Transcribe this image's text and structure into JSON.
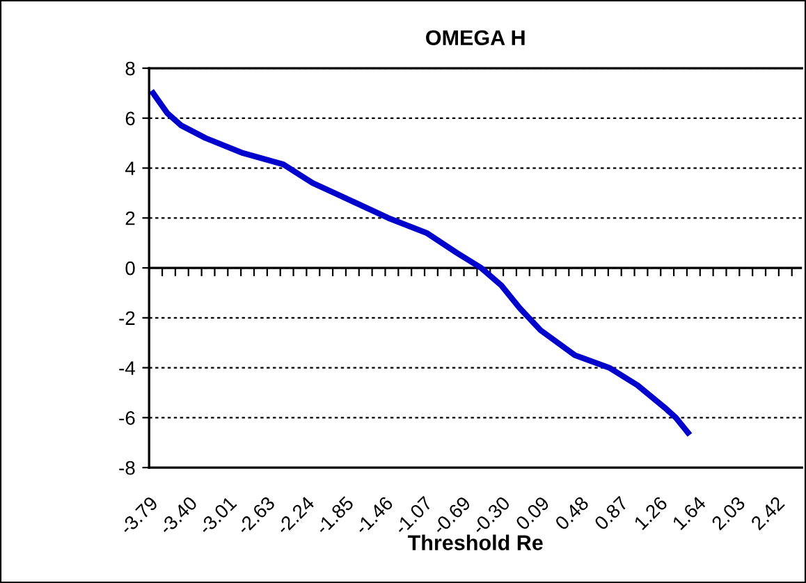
{
  "chart_data": {
    "type": "line",
    "title": "OMEGA H",
    "xlabel": "Threshold Re",
    "x": [
      -3.75,
      -3.61,
      -3.47,
      -3.23,
      -2.86,
      -2.46,
      -2.17,
      -1.9,
      -1.42,
      -1.04,
      -0.74,
      -0.5,
      -0.3,
      -0.12,
      0.09,
      0.43,
      0.77,
      1.05,
      1.32,
      1.43,
      1.55
    ],
    "series": [
      {
        "color": "#0000cc",
        "values": [
          7.0,
          6.2,
          5.7,
          5.2,
          4.6,
          4.15,
          3.4,
          2.9,
          2.0,
          1.4,
          0.6,
          0.0,
          -0.7,
          -1.6,
          -2.5,
          -3.5,
          -4.0,
          -4.7,
          -5.6,
          -6.0,
          -6.6
        ]
      }
    ],
    "xlim": [
      -3.79,
      2.68
    ],
    "xticks": [
      {
        "value": -3.79,
        "label": "-3.79"
      },
      {
        "value": -3.4,
        "label": "-3.40"
      },
      {
        "value": -3.01,
        "label": "-3.01"
      },
      {
        "value": -2.63,
        "label": "-2.63"
      },
      {
        "value": -2.24,
        "label": "-2.24"
      },
      {
        "value": -1.85,
        "label": "-1.85"
      },
      {
        "value": -1.46,
        "label": "-1.46"
      },
      {
        "value": -1.07,
        "label": "-1.07"
      },
      {
        "value": -0.69,
        "label": "-0.69"
      },
      {
        "value": -0.3,
        "label": "-0.30"
      },
      {
        "value": 0.09,
        "label": "0.09"
      },
      {
        "value": 0.48,
        "label": "0.48"
      },
      {
        "value": 0.87,
        "label": "0.87"
      },
      {
        "value": 1.26,
        "label": "1.26"
      },
      {
        "value": 1.64,
        "label": "1.64"
      },
      {
        "value": 2.03,
        "label": "2.03"
      },
      {
        "value": 2.42,
        "label": "2.42"
      }
    ],
    "ylim": [
      -8,
      8
    ],
    "yticks": [
      -8,
      -6,
      -4,
      -2,
      0,
      2,
      4,
      6,
      8
    ],
    "grid": "y",
    "legend": false,
    "marker": "none",
    "line_style": "solid"
  }
}
